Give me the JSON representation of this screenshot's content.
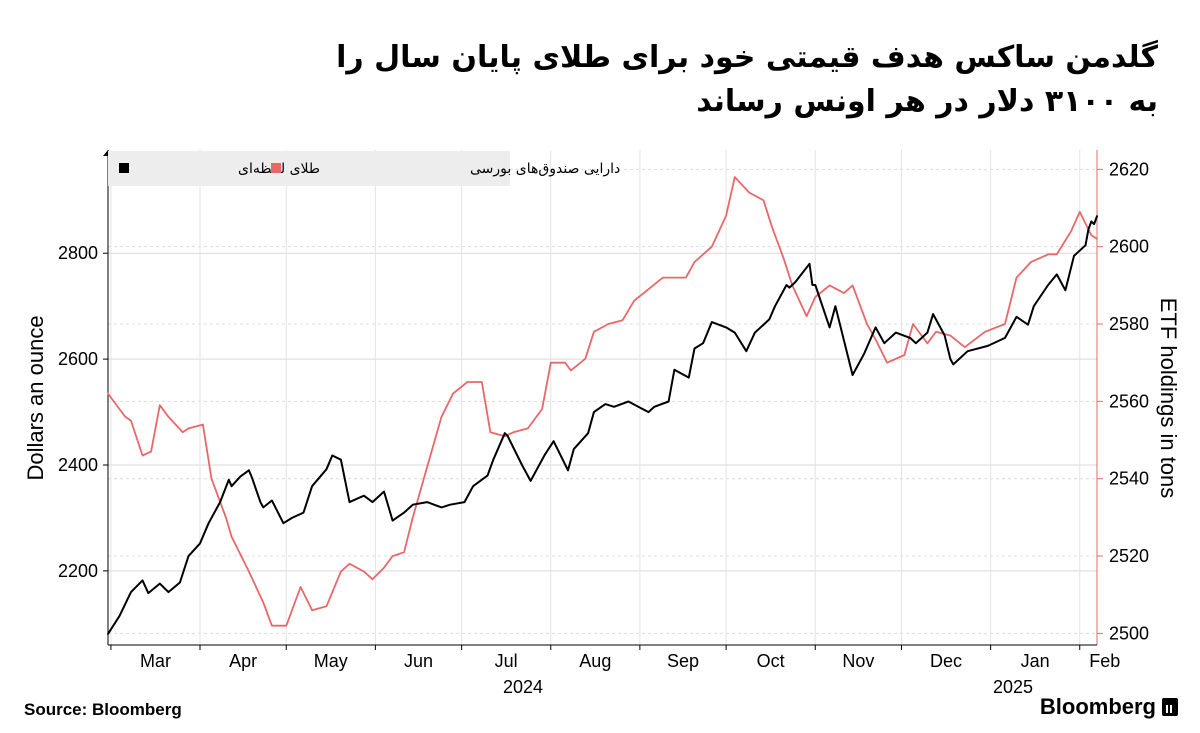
{
  "title_lines": [
    "گلدمن ساکس هدف قیمتی خود برای طلای پایان سال را",
    "به ۳۱۰۰ دلار در هر اونس رساند"
  ],
  "source_label": "Source:",
  "source_name": "Bloomberg",
  "brand": "Bloomberg",
  "chart_data": {
    "type": "line",
    "left_axis": {
      "label": "Dollars an ounce",
      "ticks": [
        2200,
        2400,
        2600,
        2800
      ],
      "range": [
        2060,
        2995
      ]
    },
    "right_axis": {
      "label": "ETF holdings in tons",
      "ticks": [
        2500,
        2520,
        2540,
        2560,
        2580,
        2600,
        2620
      ],
      "range": [
        2497,
        2625
      ]
    },
    "x_months": [
      "Mar",
      "Apr",
      "May",
      "Jun",
      "Jul",
      "Aug",
      "Sep",
      "Oct",
      "Nov",
      "Dec",
      "Jan",
      "Feb"
    ],
    "x_years": [
      "2024",
      "2025"
    ],
    "date_range": [
      "2024-02-29",
      "2025-02-07"
    ],
    "grid": true,
    "legend_position": "top-left",
    "series": [
      {
        "name": "طلای لحظه‌ای",
        "axis": "left",
        "color": "#000000",
        "x": [
          "2024-02-29",
          "2024-03-04",
          "2024-03-08",
          "2024-03-12",
          "2024-03-14",
          "2024-03-18",
          "2024-03-21",
          "2024-03-25",
          "2024-03-28",
          "2024-04-01",
          "2024-04-04",
          "2024-04-08",
          "2024-04-11",
          "2024-04-12",
          "2024-04-15",
          "2024-04-18",
          "2024-04-19",
          "2024-04-22",
          "2024-04-23",
          "2024-04-26",
          "2024-04-30",
          "2024-05-03",
          "2024-05-07",
          "2024-05-10",
          "2024-05-15",
          "2024-05-17",
          "2024-05-20",
          "2024-05-23",
          "2024-05-28",
          "2024-05-31",
          "2024-06-04",
          "2024-06-07",
          "2024-06-11",
          "2024-06-14",
          "2024-06-19",
          "2024-06-24",
          "2024-06-27",
          "2024-07-02",
          "2024-07-05",
          "2024-07-10",
          "2024-07-12",
          "2024-07-16",
          "2024-07-17",
          "2024-07-22",
          "2024-07-25",
          "2024-07-30",
          "2024-08-02",
          "2024-08-07",
          "2024-08-09",
          "2024-08-14",
          "2024-08-16",
          "2024-08-20",
          "2024-08-23",
          "2024-08-28",
          "2024-09-04",
          "2024-09-06",
          "2024-09-11",
          "2024-09-13",
          "2024-09-18",
          "2024-09-20",
          "2024-09-23",
          "2024-09-26",
          "2024-10-01",
          "2024-10-04",
          "2024-10-08",
          "2024-10-11",
          "2024-10-16",
          "2024-10-18",
          "2024-10-22",
          "2024-10-23",
          "2024-10-25",
          "2024-10-30",
          "2024-10-31",
          "2024-11-01",
          "2024-11-06",
          "2024-11-08",
          "2024-11-14",
          "2024-11-18",
          "2024-11-22",
          "2024-11-25",
          "2024-11-29",
          "2024-12-04",
          "2024-12-06",
          "2024-12-10",
          "2024-12-12",
          "2024-12-16",
          "2024-12-18",
          "2024-12-19",
          "2024-12-24",
          "2024-12-31",
          "2025-01-06",
          "2025-01-10",
          "2025-01-14",
          "2025-01-16",
          "2025-01-21",
          "2025-01-24",
          "2025-01-27",
          "2025-01-30",
          "2025-01-31",
          "2025-02-03",
          "2025-02-04",
          "2025-02-05",
          "2025-02-06",
          "2025-02-07"
        ],
        "values": [
          2081,
          2115,
          2160,
          2182,
          2158,
          2176,
          2160,
          2178,
          2228,
          2252,
          2290,
          2330,
          2372,
          2360,
          2378,
          2390,
          2377,
          2330,
          2320,
          2333,
          2290,
          2300,
          2310,
          2360,
          2392,
          2418,
          2410,
          2330,
          2342,
          2330,
          2350,
          2295,
          2310,
          2325,
          2330,
          2320,
          2325,
          2330,
          2360,
          2380,
          2410,
          2460,
          2455,
          2400,
          2370,
          2420,
          2445,
          2390,
          2430,
          2460,
          2500,
          2515,
          2510,
          2520,
          2500,
          2510,
          2520,
          2580,
          2565,
          2620,
          2630,
          2670,
          2660,
          2650,
          2615,
          2650,
          2675,
          2700,
          2740,
          2735,
          2745,
          2780,
          2740,
          2740,
          2660,
          2700,
          2570,
          2610,
          2660,
          2630,
          2650,
          2640,
          2630,
          2650,
          2685,
          2645,
          2600,
          2590,
          2615,
          2625,
          2640,
          2680,
          2665,
          2700,
          2740,
          2760,
          2730,
          2795,
          2800,
          2815,
          2845,
          2860,
          2855,
          2870
        ]
      },
      {
        "name": "دارایی صندوق‌های بورسی",
        "axis": "right",
        "color": "#e8686a",
        "x": [
          "2024-02-29",
          "2024-03-04",
          "2024-03-06",
          "2024-03-08",
          "2024-03-12",
          "2024-03-15",
          "2024-03-18",
          "2024-03-21",
          "2024-03-26",
          "2024-03-28",
          "2024-04-02",
          "2024-04-05",
          "2024-04-10",
          "2024-04-12",
          "2024-04-18",
          "2024-04-23",
          "2024-04-26",
          "2024-05-01",
          "2024-05-06",
          "2024-05-10",
          "2024-05-15",
          "2024-05-20",
          "2024-05-23",
          "2024-05-28",
          "2024-05-31",
          "2024-06-04",
          "2024-06-07",
          "2024-06-11",
          "2024-06-14",
          "2024-06-19",
          "2024-06-24",
          "2024-06-28",
          "2024-07-03",
          "2024-07-08",
          "2024-07-11",
          "2024-07-16",
          "2024-07-19",
          "2024-07-24",
          "2024-07-29",
          "2024-08-01",
          "2024-08-06",
          "2024-08-08",
          "2024-08-13",
          "2024-08-16",
          "2024-08-21",
          "2024-08-26",
          "2024-08-30",
          "2024-09-04",
          "2024-09-09",
          "2024-09-12",
          "2024-09-17",
          "2024-09-20",
          "2024-09-26",
          "2024-10-01",
          "2024-10-04",
          "2024-10-09",
          "2024-10-14",
          "2024-10-17",
          "2024-10-21",
          "2024-10-24",
          "2024-10-29",
          "2024-11-01",
          "2024-11-06",
          "2024-11-11",
          "2024-11-14",
          "2024-11-19",
          "2024-11-22",
          "2024-11-26",
          "2024-12-02",
          "2024-12-05",
          "2024-12-10",
          "2024-12-13",
          "2024-12-18",
          "2024-12-23",
          "2024-12-30",
          "2025-01-06",
          "2025-01-10",
          "2025-01-15",
          "2025-01-21",
          "2025-01-24",
          "2025-01-29",
          "2025-02-01",
          "2025-02-03",
          "2025-02-05",
          "2025-02-07"
        ],
        "values": [
          2562,
          2558,
          2556,
          2555,
          2546,
          2547,
          2559,
          2556,
          2552,
          2553,
          2554,
          2540,
          2530,
          2525,
          2516,
          2508,
          2502,
          2502,
          2512,
          2506,
          2507,
          2516,
          2518,
          2516,
          2514,
          2517,
          2520,
          2521,
          2530,
          2543,
          2556,
          2562,
          2565,
          2565,
          2552,
          2551,
          2552,
          2553,
          2558,
          2570,
          2570,
          2568,
          2571,
          2578,
          2580,
          2581,
          2586,
          2589,
          2592,
          2592,
          2592,
          2596,
          2600,
          2608,
          2618,
          2614,
          2612,
          2605,
          2597,
          2590,
          2582,
          2587,
          2590,
          2588,
          2590,
          2580,
          2576,
          2570,
          2572,
          2580,
          2575,
          2578,
          2577,
          2574,
          2578,
          2580,
          2592,
          2596,
          2598,
          2598,
          2604,
          2609,
          2606,
          2603,
          2602
        ]
      }
    ]
  }
}
